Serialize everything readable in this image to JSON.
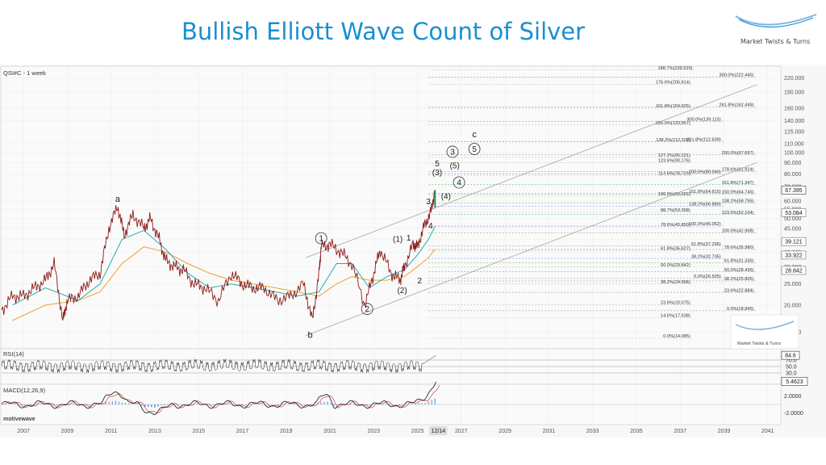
{
  "page": {
    "title": "Bullish Elliott Wave Count of Silver",
    "brand": "Market Twists & Turns",
    "inner_brand": "Market Twists & Turns",
    "symbol": "QSI#C - 1 week",
    "rsi_label": "RSI(14)",
    "macd_label": "MACD(12,26,9)",
    "watermark": "motivewave",
    "brand_color": "#1a8fd1"
  },
  "chart_data": {
    "type": "line",
    "title": "Bullish Elliott Wave Count of Silver",
    "price_scale": "log",
    "ylim": [
      13.5,
      245
    ],
    "x_ticks": [
      "2007",
      "2009",
      "2011",
      "2013",
      "2015",
      "2017",
      "2019",
      "2021",
      "2023",
      "2025",
      "2027",
      "2029",
      "2031",
      "2033",
      "2035",
      "2037",
      "2039",
      "2041"
    ],
    "cursor_date": "12/14",
    "y_ticks": [
      15,
      20,
      25,
      30,
      35,
      40,
      45,
      50,
      55,
      60,
      70,
      80,
      90,
      100,
      110,
      125,
      140,
      160,
      190,
      220
    ],
    "y_tick_labels": [
      "15.000",
      "20.000",
      "25.000",
      "30.000",
      "35.000",
      "40.000",
      "45.000",
      "50.000",
      "55.000",
      "60.000",
      "70.000",
      "80.000",
      "90.000",
      "100.000",
      "110.000",
      "125.000",
      "140.000",
      "160.000",
      "190.000",
      "220.000"
    ],
    "price_badges": [
      {
        "value": 67.395,
        "label": "67.395",
        "color": "#333333"
      },
      {
        "value": 53.084,
        "label": "53.084",
        "color": "#777777"
      },
      {
        "value": 39.121,
        "label": "39.121",
        "color": "#777777"
      },
      {
        "value": 33.922,
        "label": "33.922",
        "color": "#777777"
      },
      {
        "value": 28.842,
        "label": "28.842",
        "color": "#777777"
      }
    ],
    "price_series": [
      {
        "x": 2006.0,
        "y": 19
      },
      {
        "x": 2006.5,
        "y": 22
      },
      {
        "x": 2007.0,
        "y": 22
      },
      {
        "x": 2007.5,
        "y": 24
      },
      {
        "x": 2008.0,
        "y": 26
      },
      {
        "x": 2008.4,
        "y": 31
      },
      {
        "x": 2008.8,
        "y": 17
      },
      {
        "x": 2009.0,
        "y": 21
      },
      {
        "x": 2009.5,
        "y": 22
      },
      {
        "x": 2010.0,
        "y": 26
      },
      {
        "x": 2010.5,
        "y": 28
      },
      {
        "x": 2010.9,
        "y": 45
      },
      {
        "x": 2011.3,
        "y": 57
      },
      {
        "x": 2011.6,
        "y": 42
      },
      {
        "x": 2012.0,
        "y": 52
      },
      {
        "x": 2012.5,
        "y": 45
      },
      {
        "x": 2012.8,
        "y": 50
      },
      {
        "x": 2013.2,
        "y": 40
      },
      {
        "x": 2013.5,
        "y": 32
      },
      {
        "x": 2013.9,
        "y": 30
      },
      {
        "x": 2014.3,
        "y": 29
      },
      {
        "x": 2014.8,
        "y": 25
      },
      {
        "x": 2015.3,
        "y": 24
      },
      {
        "x": 2015.9,
        "y": 21
      },
      {
        "x": 2016.5,
        "y": 28
      },
      {
        "x": 2017.0,
        "y": 25
      },
      {
        "x": 2017.5,
        "y": 24
      },
      {
        "x": 2018.0,
        "y": 24
      },
      {
        "x": 2018.6,
        "y": 21
      },
      {
        "x": 2019.2,
        "y": 22
      },
      {
        "x": 2019.8,
        "y": 25
      },
      {
        "x": 2020.2,
        "y": 17
      },
      {
        "x": 2020.5,
        "y": 28
      },
      {
        "x": 2020.6,
        "y": 37
      },
      {
        "x": 2021.0,
        "y": 38
      },
      {
        "x": 2021.5,
        "y": 35
      },
      {
        "x": 2022.0,
        "y": 31
      },
      {
        "x": 2022.6,
        "y": 20
      },
      {
        "x": 2023.0,
        "y": 28
      },
      {
        "x": 2023.3,
        "y": 36
      },
      {
        "x": 2023.8,
        "y": 28
      },
      {
        "x": 2024.2,
        "y": 26
      },
      {
        "x": 2024.4,
        "y": 30
      },
      {
        "x": 2024.8,
        "y": 38
      },
      {
        "x": 2025.0,
        "y": 37
      },
      {
        "x": 2025.3,
        "y": 46
      },
      {
        "x": 2025.6,
        "y": 53
      },
      {
        "x": 2025.8,
        "y": 67.4
      }
    ],
    "ma_fast": [
      {
        "x": 2006.5,
        "y": 20
      },
      {
        "x": 2008.0,
        "y": 24
      },
      {
        "x": 2009.5,
        "y": 21
      },
      {
        "x": 2010.5,
        "y": 25
      },
      {
        "x": 2011.5,
        "y": 40
      },
      {
        "x": 2012.5,
        "y": 44
      },
      {
        "x": 2013.5,
        "y": 36
      },
      {
        "x": 2014.5,
        "y": 28
      },
      {
        "x": 2015.5,
        "y": 24
      },
      {
        "x": 2016.5,
        "y": 25
      },
      {
        "x": 2017.5,
        "y": 24
      },
      {
        "x": 2018.5,
        "y": 23
      },
      {
        "x": 2019.5,
        "y": 22
      },
      {
        "x": 2020.5,
        "y": 23
      },
      {
        "x": 2021.3,
        "y": 31
      },
      {
        "x": 2022.0,
        "y": 31
      },
      {
        "x": 2022.8,
        "y": 24
      },
      {
        "x": 2023.6,
        "y": 27
      },
      {
        "x": 2024.4,
        "y": 29
      },
      {
        "x": 2025.0,
        "y": 34
      },
      {
        "x": 2025.5,
        "y": 40
      },
      {
        "x": 2025.8,
        "y": 46
      }
    ],
    "ma_slow": [
      {
        "x": 2006.5,
        "y": 17
      },
      {
        "x": 2008.0,
        "y": 20
      },
      {
        "x": 2009.5,
        "y": 21
      },
      {
        "x": 2010.5,
        "y": 23
      },
      {
        "x": 2011.5,
        "y": 31
      },
      {
        "x": 2012.5,
        "y": 37
      },
      {
        "x": 2013.5,
        "y": 35
      },
      {
        "x": 2014.5,
        "y": 31
      },
      {
        "x": 2015.5,
        "y": 28
      },
      {
        "x": 2016.5,
        "y": 26
      },
      {
        "x": 2017.5,
        "y": 25
      },
      {
        "x": 2018.5,
        "y": 24
      },
      {
        "x": 2019.5,
        "y": 23
      },
      {
        "x": 2020.5,
        "y": 22
      },
      {
        "x": 2021.3,
        "y": 25
      },
      {
        "x": 2022.0,
        "y": 27
      },
      {
        "x": 2022.8,
        "y": 26
      },
      {
        "x": 2023.6,
        "y": 26
      },
      {
        "x": 2024.4,
        "y": 27
      },
      {
        "x": 2025.0,
        "y": 30
      },
      {
        "x": 2025.5,
        "y": 33
      },
      {
        "x": 2025.8,
        "y": 36
      }
    ],
    "channel_lines": [
      {
        "x1": 2019.9,
        "y1": 33,
        "x2": 2040.5,
        "y2": 205
      },
      {
        "x1": 2019.9,
        "y1": 14.5,
        "x2": 2040.5,
        "y2": 90
      }
    ],
    "fib_levels_gray": [
      {
        "label": "188.7%(239.520)",
        "value": 239.52,
        "x_label": 2037.6
      },
      {
        "label": "176.6%(205.814)",
        "value": 205.814,
        "x_label": 2037.5
      },
      {
        "label": "161.8%(159.925)",
        "value": 159.925,
        "x_label": 2037.5
      },
      {
        "label": "150.0%(133.957)",
        "value": 133.957,
        "x_label": 2037.5
      },
      {
        "label": "138.2%(112.205)",
        "value": 112.205,
        "x_label": 2037.5
      },
      {
        "label": "127.2%(95.121)",
        "value": 95.121,
        "x_label": 2037.5
      },
      {
        "label": "123.6%(90.176)",
        "value": 90.176,
        "x_label": 2037.5
      },
      {
        "label": "114.6%(78.724)",
        "value": 78.724,
        "x_label": 2037.5
      },
      {
        "label": "100.0%(63.226)",
        "value": 63.226,
        "x_label": 2037.5
      },
      {
        "label": "88.7%(53.358)",
        "value": 53.358,
        "x_label": 2037.5
      },
      {
        "label": "78.6%(45.850)",
        "value": 45.85,
        "x_label": 2037.5
      },
      {
        "label": "61.8%(35.627)",
        "value": 35.627,
        "x_label": 2037.5
      },
      {
        "label": "50.0%(29.842)",
        "value": 29.842,
        "x_label": 2037.5
      },
      {
        "label": "38.2%(24.996)",
        "value": 24.996,
        "x_label": 2037.5
      },
      {
        "label": "23.6%(20.075)",
        "value": 20.075,
        "x_label": 2037.5
      },
      {
        "label": "14.6%(17.538)",
        "value": 17.538,
        "x_label": 2037.5
      },
      {
        "label": "0.0%(14.085)",
        "value": 14.085,
        "x_label": 2037.5
      }
    ],
    "fib_levels_green": [
      {
        "label": "300.0%(222.445)",
        "value": 222.445,
        "x_label": 2040.4
      },
      {
        "label": "261.8%(162.449)",
        "value": 162.449,
        "x_label": 2040.4
      },
      {
        "label": "200.0%(97.697)",
        "value": 97.697,
        "x_label": 2040.4
      },
      {
        "label": "178.6%(81.924)",
        "value": 81.924,
        "x_label": 2040.4
      },
      {
        "label": "161.8%(71.347)",
        "value": 71.347,
        "x_label": 2040.4
      },
      {
        "label": "150.0%(64.745)",
        "value": 64.745,
        "x_label": 2040.4
      },
      {
        "label": "138.2%(58.755)",
        "value": 58.755,
        "x_label": 2040.4
      },
      {
        "label": "123.6%(52.104)",
        "value": 52.104,
        "x_label": 2040.4
      },
      {
        "label": "100.0%(42.908)",
        "value": 42.908,
        "x_label": 2040.4
      },
      {
        "label": "78.6%(35.980)",
        "value": 35.98,
        "x_label": 2040.4
      },
      {
        "label": "61.8%(31.335)",
        "value": 31.335,
        "x_label": 2040.4
      },
      {
        "label": "50.0%(28.436)",
        "value": 28.436,
        "x_label": 2040.4
      },
      {
        "label": "38.2%(25.805)",
        "value": 25.805,
        "x_label": 2040.4
      },
      {
        "label": "23.6%(22.884)",
        "value": 22.884,
        "x_label": 2040.4
      },
      {
        "label": "0.0%(18.845)",
        "value": 18.845,
        "x_label": 2040.4
      }
    ],
    "fib_levels_blue": [
      {
        "label": "300.0%(139.115)",
        "value": 139.115,
        "x_label": 2038.9
      },
      {
        "label": "261.8%(112.639)",
        "value": 112.639,
        "x_label": 2038.9
      },
      {
        "label": "200.0%(80.049)",
        "value": 80.049,
        "x_label": 2038.9
      },
      {
        "label": "161.8%(64.815)",
        "value": 64.815,
        "x_label": 2038.9
      },
      {
        "label": "138.2%(56.889)",
        "value": 56.889,
        "x_label": 2038.9
      },
      {
        "label": "100.0%(46.062)",
        "value": 46.062,
        "x_label": 2038.9
      },
      {
        "label": "61.8%(37.296)",
        "value": 37.296,
        "x_label": 2038.9
      },
      {
        "label": "38.2%(32.735)",
        "value": 32.735,
        "x_label": 2038.9
      },
      {
        "label": "0.0%(26.505)",
        "value": 26.505,
        "x_label": 2038.9
      }
    ],
    "wave_labels": [
      {
        "text": "a",
        "x": 2011.3,
        "y": 61,
        "style": "serif"
      },
      {
        "text": "b",
        "x": 2020.1,
        "y": 14.5,
        "style": "serif"
      },
      {
        "text": "c",
        "x": 2027.6,
        "y": 121,
        "style": "serif"
      },
      {
        "text": "1",
        "x": 2020.6,
        "y": 40.5,
        "style": "circle"
      },
      {
        "text": "2",
        "x": 2022.7,
        "y": 19.2,
        "style": "circle"
      },
      {
        "text": "3",
        "x": 2026.6,
        "y": 101,
        "style": "circle"
      },
      {
        "text": "4",
        "x": 2026.9,
        "y": 73,
        "style": "circle"
      },
      {
        "text": "5",
        "x": 2027.6,
        "y": 104,
        "style": "circle"
      },
      {
        "text": "(1)",
        "x": 2024.1,
        "y": 40,
        "style": "plain"
      },
      {
        "text": "(2)",
        "x": 2024.3,
        "y": 23.3,
        "style": "plain"
      },
      {
        "text": "(3)",
        "x": 2025.9,
        "y": 81,
        "style": "plain"
      },
      {
        "text": "(4)",
        "x": 2026.3,
        "y": 63,
        "style": "plain"
      },
      {
        "text": "(5)",
        "x": 2026.7,
        "y": 87,
        "style": "plain"
      },
      {
        "text": "1",
        "x": 2024.6,
        "y": 40.5,
        "style": "plain"
      },
      {
        "text": "2",
        "x": 2025.1,
        "y": 25.8,
        "style": "plain"
      },
      {
        "text": "3",
        "x": 2025.5,
        "y": 59.5,
        "style": "plain"
      },
      {
        "text": "4",
        "x": 2025.6,
        "y": 46,
        "style": "plain"
      },
      {
        "text": "5",
        "x": 2025.9,
        "y": 89,
        "style": "plain"
      }
    ],
    "rsi": {
      "current": 84.6,
      "levels": [
        70.0,
        50.0,
        30.0
      ],
      "level_labels": [
        "70.0",
        "50.0",
        "30.0"
      ],
      "current_label": "84.6"
    },
    "macd": {
      "current": 5.4623,
      "ticks": [
        2.0,
        -2.0
      ],
      "tick_labels": [
        "2.0000",
        "-2.0000"
      ],
      "current_label": "5.4623"
    }
  }
}
